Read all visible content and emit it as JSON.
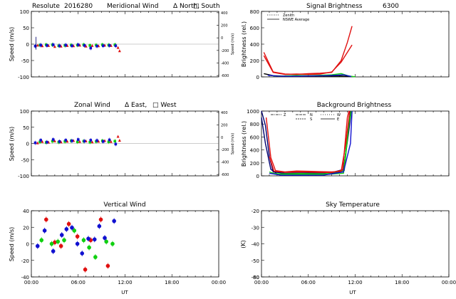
{
  "colors": {
    "red": "#e01010",
    "green": "#10d010",
    "blue": "#1010d0",
    "navy": "#000070",
    "black": "#000000"
  },
  "chart_data": [
    {
      "id": "meridional",
      "type": "scatter",
      "title_parts": [
        "Resolute",
        "2016280",
        "Meridional Wind",
        "Δ North,",
        "□ South"
      ],
      "ylabel": "Speed (m/s)",
      "ylabel_right": "Speed (m/s)",
      "xlim": [
        0,
        24
      ],
      "ylim": [
        -100,
        100
      ],
      "yticks": [
        "-100",
        "-50",
        "0",
        "50",
        "100"
      ],
      "yticks_right": [
        "-600",
        "-400",
        "-200",
        "0",
        "200",
        "400"
      ],
      "xticks": [],
      "series": [
        {
          "color": "red",
          "points": [
            [
              0.8,
              -3
            ],
            [
              1.4,
              -5
            ],
            [
              2.2,
              -4
            ],
            [
              3.0,
              -7
            ],
            [
              3.8,
              -6
            ],
            [
              4.6,
              -4
            ],
            [
              5.4,
              -5
            ],
            [
              6.2,
              -3
            ],
            [
              7.0,
              -6
            ],
            [
              7.8,
              -4
            ],
            [
              8.6,
              -5
            ],
            [
              9.4,
              -3
            ],
            [
              10.2,
              -4
            ],
            [
              11.1,
              -10
            ],
            [
              11.3,
              -20
            ]
          ]
        },
        {
          "color": "green",
          "points": [
            [
              1.1,
              -3
            ],
            [
              1.9,
              -2
            ],
            [
              2.7,
              -2
            ],
            [
              3.5,
              -5
            ],
            [
              4.3,
              -4
            ],
            [
              5.1,
              -3
            ],
            [
              5.9,
              -3
            ],
            [
              6.7,
              -2
            ],
            [
              7.5,
              -4
            ],
            [
              8.3,
              -3
            ],
            [
              9.1,
              -2
            ],
            [
              9.9,
              -3
            ],
            [
              10.7,
              -2
            ]
          ]
        },
        {
          "color": "blue",
          "points": [
            [
              0.5,
              -6
            ],
            [
              1.2,
              -3
            ],
            [
              2.0,
              -4
            ],
            [
              2.8,
              -2
            ],
            [
              3.6,
              -5
            ],
            [
              4.4,
              -3
            ],
            [
              5.2,
              -5
            ],
            [
              6.0,
              -2
            ],
            [
              6.8,
              -4
            ],
            [
              7.6,
              -12
            ],
            [
              8.4,
              -6
            ],
            [
              9.2,
              -5
            ],
            [
              10.0,
              -4
            ],
            [
              10.8,
              -5
            ]
          ]
        },
        {
          "color": "navy",
          "points": [
            [
              0.6,
              5
            ]
          ]
        }
      ]
    },
    {
      "id": "zonal",
      "type": "scatter",
      "title_parts": [
        "Zonal Wind",
        "Δ East,",
        "□ West"
      ],
      "ylabel": "Speed (m/s)",
      "ylabel_right": "Speed (m/s)",
      "xlim": [
        0,
        24
      ],
      "ylim": [
        -100,
        100
      ],
      "yticks": [
        "-100",
        "-50",
        "0",
        "50",
        "100"
      ],
      "yticks_right": [
        "-600",
        "-400",
        "-200",
        "0",
        "200",
        "400"
      ],
      "xticks": [],
      "series": [
        {
          "color": "red",
          "points": [
            [
              0.8,
              2
            ],
            [
              1.4,
              6
            ],
            [
              2.2,
              4
            ],
            [
              3.0,
              8
            ],
            [
              3.8,
              5
            ],
            [
              4.6,
              7
            ],
            [
              5.4,
              9
            ],
            [
              6.2,
              6
            ],
            [
              7.0,
              8
            ],
            [
              7.8,
              5
            ],
            [
              8.6,
              7
            ],
            [
              9.4,
              9
            ],
            [
              10.2,
              6
            ],
            [
              11.1,
              22
            ],
            [
              11.3,
              10
            ]
          ]
        },
        {
          "color": "green",
          "points": [
            [
              1.1,
              5
            ],
            [
              1.9,
              3
            ],
            [
              2.7,
              7
            ],
            [
              3.5,
              4
            ],
            [
              4.3,
              6
            ],
            [
              5.1,
              8
            ],
            [
              5.9,
              5
            ],
            [
              6.7,
              7
            ],
            [
              7.5,
              4
            ],
            [
              8.3,
              6
            ],
            [
              9.1,
              8
            ],
            [
              9.9,
              5
            ],
            [
              10.7,
              7
            ]
          ]
        },
        {
          "color": "blue",
          "points": [
            [
              0.5,
              2
            ],
            [
              1.2,
              10
            ],
            [
              2.0,
              4
            ],
            [
              2.8,
              12
            ],
            [
              3.6,
              6
            ],
            [
              4.4,
              10
            ],
            [
              5.2,
              8
            ],
            [
              6.0,
              12
            ],
            [
              6.8,
              7
            ],
            [
              7.6,
              10
            ],
            [
              8.4,
              9
            ],
            [
              9.2,
              6
            ],
            [
              10.0,
              11
            ],
            [
              10.8,
              -2
            ]
          ]
        }
      ]
    },
    {
      "id": "vertical",
      "type": "scatter",
      "title": "Vertical Wind",
      "ylabel": "Speed (m/s)",
      "xlabel": "UT",
      "xlim": [
        0,
        24
      ],
      "ylim": [
        -45,
        45
      ],
      "yticks": [
        "-40",
        "-20",
        "0",
        "20",
        "40"
      ],
      "xticks": [
        "00:00",
        "06:00",
        "12:00",
        "18:00",
        "00:00"
      ],
      "series": [
        {
          "color": "red",
          "points": [
            [
              1.9,
              33
            ],
            [
              3.0,
              2
            ],
            [
              3.8,
              -3
            ],
            [
              4.8,
              27
            ],
            [
              5.9,
              10
            ],
            [
              6.9,
              -35
            ],
            [
              7.6,
              5
            ],
            [
              8.9,
              33
            ],
            [
              9.8,
              -30
            ]
          ]
        },
        {
          "color": "green",
          "points": [
            [
              1.3,
              5
            ],
            [
              2.6,
              0
            ],
            [
              3.4,
              3
            ],
            [
              4.2,
              5
            ],
            [
              5.5,
              18
            ],
            [
              6.7,
              5
            ],
            [
              7.4,
              -5
            ],
            [
              8.2,
              -18
            ],
            [
              9.6,
              3
            ],
            [
              10.4,
              0
            ]
          ]
        },
        {
          "color": "blue",
          "points": [
            [
              0.8,
              -3
            ],
            [
              1.7,
              18
            ],
            [
              2.8,
              -10
            ],
            [
              3.9,
              12
            ],
            [
              4.5,
              20
            ],
            [
              5.2,
              22
            ],
            [
              5.9,
              0
            ],
            [
              6.5,
              -13
            ],
            [
              7.3,
              7
            ],
            [
              8.1,
              6
            ],
            [
              8.7,
              24
            ],
            [
              9.4,
              8
            ],
            [
              10.6,
              31
            ]
          ]
        }
      ]
    },
    {
      "id": "signal",
      "type": "line",
      "title": "Signal Brightness",
      "title2": "6300",
      "ylabel": "Brightness (rel.)",
      "xlim": [
        0,
        24
      ],
      "ylim": [
        0,
        800
      ],
      "yticks": [
        "0",
        "200",
        "400",
        "600",
        "800"
      ],
      "xticks": [],
      "legend": [
        "Zenith",
        "NSWE Average"
      ],
      "series": [
        {
          "color": "red",
          "points": [
            [
              0.3,
              300
            ],
            [
              1.5,
              60
            ],
            [
              3.0,
              35
            ],
            [
              4.5,
              30
            ],
            [
              6.0,
              40
            ],
            [
              7.5,
              45
            ],
            [
              9.0,
              55
            ],
            [
              10.2,
              200
            ],
            [
              11.0,
              420
            ],
            [
              11.6,
              620
            ]
          ]
        },
        {
          "color": "red",
          "points": [
            [
              0.3,
              260
            ],
            [
              1.5,
              55
            ],
            [
              3.0,
              30
            ],
            [
              4.5,
              35
            ],
            [
              6.0,
              30
            ],
            [
              7.5,
              35
            ],
            [
              9.0,
              60
            ],
            [
              10.2,
              180
            ],
            [
              11.6,
              390
            ]
          ]
        },
        {
          "color": "black",
          "points": [
            [
              0.3,
              40
            ],
            [
              1.5,
              15
            ],
            [
              3.0,
              10
            ],
            [
              4.5,
              10
            ],
            [
              6.0,
              10
            ],
            [
              7.5,
              10
            ],
            [
              9.0,
              10
            ],
            [
              10.2,
              10
            ],
            [
              11.5,
              5
            ]
          ]
        },
        {
          "color": "green",
          "points": [
            [
              1.5,
              10
            ],
            [
              3.0,
              12
            ],
            [
              4.5,
              18
            ],
            [
              6.0,
              15
            ],
            [
              7.5,
              20
            ],
            [
              9.0,
              25
            ],
            [
              10.2,
              40
            ],
            [
              11.2,
              10
            ],
            [
              12.0,
              2
            ]
          ]
        },
        {
          "color": "blue",
          "points": [
            [
              0.8,
              20
            ],
            [
              2.0,
              10
            ],
            [
              3.5,
              8
            ],
            [
              5.0,
              10
            ],
            [
              6.5,
              12
            ],
            [
              8.0,
              15
            ],
            [
              9.5,
              20
            ],
            [
              10.5,
              25
            ],
            [
              11.5,
              5
            ]
          ]
        }
      ]
    },
    {
      "id": "background",
      "type": "line",
      "title": "Background Brightness",
      "ylabel": "Brightness (rel.)",
      "xlim": [
        0,
        24
      ],
      "ylim": [
        0,
        1000
      ],
      "yticks": [
        "0",
        "200",
        "400",
        "600",
        "800",
        "1000"
      ],
      "xticks": [],
      "legend": [
        "Z",
        "N",
        "S",
        "W",
        "E"
      ],
      "series": [
        {
          "color": "navy",
          "points": [
            [
              0,
              1000
            ],
            [
              0.5,
              780
            ],
            [
              1.0,
              300
            ],
            [
              1.5,
              60
            ],
            [
              3.0,
              40
            ],
            [
              6.0,
              45
            ],
            [
              9.0,
              50
            ],
            [
              10.5,
              100
            ],
            [
              11.2,
              700
            ],
            [
              11.5,
              1000
            ]
          ]
        },
        {
          "color": "navy",
          "points": [
            [
              0,
              900
            ],
            [
              0.5,
              500
            ],
            [
              1.2,
              100
            ],
            [
              2.0,
              30
            ],
            [
              5.0,
              30
            ],
            [
              8.0,
              35
            ],
            [
              10.5,
              60
            ],
            [
              11.4,
              1000
            ]
          ]
        },
        {
          "color": "green",
          "points": [
            [
              1.0,
              60
            ],
            [
              2.0,
              20
            ],
            [
              5.0,
              25
            ],
            [
              8.0,
              20
            ],
            [
              10.5,
              40
            ],
            [
              11.0,
              600
            ],
            [
              11.3,
              1000
            ]
          ]
        },
        {
          "color": "green",
          "points": [
            [
              1.2,
              40
            ],
            [
              2.5,
              30
            ],
            [
              5.0,
              35
            ],
            [
              8.0,
              30
            ],
            [
              10.6,
              80
            ],
            [
              11.2,
              800
            ],
            [
              11.5,
              1000
            ]
          ]
        },
        {
          "color": "blue",
          "points": [
            [
              1.0,
              40
            ],
            [
              2.5,
              10
            ],
            [
              5.0,
              10
            ],
            [
              8.0,
              12
            ],
            [
              10.5,
              60
            ],
            [
              11.4,
              500
            ],
            [
              11.6,
              1000
            ]
          ]
        },
        {
          "color": "red",
          "points": [
            [
              0.6,
              900
            ],
            [
              1.2,
              280
            ],
            [
              1.8,
              80
            ],
            [
              3.0,
              60
            ],
            [
              4.5,
              75
            ],
            [
              6.0,
              70
            ],
            [
              7.5,
              65
            ],
            [
              9.0,
              60
            ],
            [
              10.2,
              70
            ],
            [
              10.8,
              500
            ],
            [
              11.3,
              1000
            ]
          ]
        },
        {
          "color": "red",
          "points": [
            [
              1.0,
              300
            ],
            [
              1.6,
              70
            ],
            [
              3.0,
              55
            ],
            [
              5.0,
              60
            ],
            [
              7.0,
              55
            ],
            [
              9.0,
              50
            ],
            [
              10.4,
              90
            ],
            [
              11.0,
              900
            ],
            [
              11.2,
              1000
            ]
          ]
        }
      ]
    },
    {
      "id": "skytemp",
      "type": "line",
      "title": "Sky Temperature",
      "ylabel": "(K)",
      "xlabel": "UT",
      "xlim": [
        0,
        24
      ],
      "ylim": [
        -60,
        -20
      ],
      "yticks": [
        "-60",
        "-50",
        "-40",
        "-30",
        "-20"
      ],
      "yticks_extra": "-80",
      "xticks": [
        "00:00",
        "06:00",
        "12:00",
        "18:00",
        "00:00"
      ],
      "series": []
    }
  ]
}
